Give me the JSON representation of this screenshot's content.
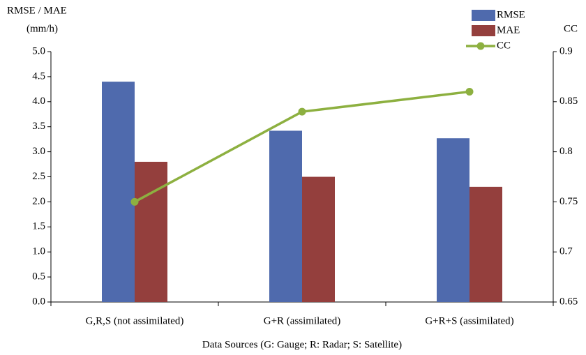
{
  "chart_data": {
    "type": "bar",
    "ylabel": [
      "RMSE / MAE",
      "(mm/h)"
    ],
    "y2label": "CC",
    "xlabel": "Data Sources (G: Gauge; R: Radar; S: Satellite)",
    "categories": [
      "G,R,S (not assimilated)",
      "G+R (assimilated)",
      "G+R+S (assimilated)"
    ],
    "series": [
      {
        "name": "RMSE",
        "color": "#4f6aad",
        "values": [
          4.4,
          3.42,
          3.27
        ]
      },
      {
        "name": "MAE",
        "color": "#943f3d",
        "values": [
          2.8,
          2.5,
          2.3
        ]
      },
      {
        "name": "CC",
        "color": "#8db040",
        "type": "line",
        "axis": "y2",
        "values": [
          0.75,
          0.84,
          0.86
        ]
      }
    ],
    "ylim": [
      0,
      5
    ],
    "yticks": [
      {
        "value": 0,
        "label": "0.0"
      },
      0.5,
      {
        "value": 1,
        "label": "1.0"
      },
      1.5,
      {
        "value": 2,
        "label": "2.0"
      },
      2.5,
      {
        "value": 3,
        "label": "3.0"
      },
      3.5,
      {
        "value": 4,
        "label": "4.0"
      },
      4.5,
      {
        "value": 5,
        "label": "5.0"
      }
    ],
    "y2lim": [
      0.65,
      0.9
    ],
    "y2ticks": [
      0.65,
      0.7,
      0.75,
      0.8,
      0.85,
      0.9
    ],
    "legend": "top-right"
  }
}
